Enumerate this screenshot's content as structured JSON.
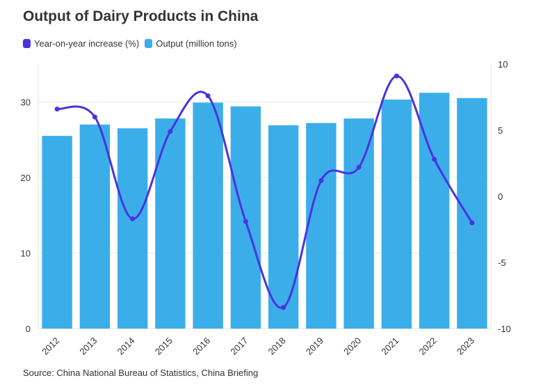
{
  "title": "Output of Dairy Products in China",
  "source": "Source: China National Bureau of Statistics, China Briefing",
  "legend": {
    "line_label": "Year-on-year increase (%)",
    "bar_label": "Output (million tons)"
  },
  "colors": {
    "line": "#4a32e0",
    "bar": "#3baeea",
    "grid": "#e6e6e6",
    "text": "#333333"
  },
  "chart_data": {
    "type": "bar",
    "categories": [
      "2012",
      "2013",
      "2014",
      "2015",
      "2016",
      "2017",
      "2018",
      "2019",
      "2020",
      "2021",
      "2022",
      "2023"
    ],
    "series": [
      {
        "name": "Output (million tons)",
        "type": "bar",
        "axis": "left",
        "values": [
          25.5,
          27.0,
          26.5,
          27.8,
          29.9,
          29.4,
          26.9,
          27.2,
          27.8,
          30.3,
          31.2,
          30.5
        ]
      },
      {
        "name": "Year-on-year increase (%)",
        "type": "line",
        "axis": "right",
        "values": [
          6.6,
          6.0,
          -1.7,
          4.9,
          7.6,
          -1.9,
          -8.4,
          1.2,
          2.2,
          9.1,
          2.8,
          -2.0
        ]
      }
    ],
    "y_left": {
      "range": [
        0,
        35
      ],
      "ticks": [
        "0",
        "10",
        "20",
        "30"
      ]
    },
    "y_right": {
      "range": [
        -10,
        10
      ],
      "ticks": [
        "10",
        "5",
        "0",
        "-5",
        "-10"
      ]
    },
    "grid": true,
    "legend_position": "top-left"
  }
}
